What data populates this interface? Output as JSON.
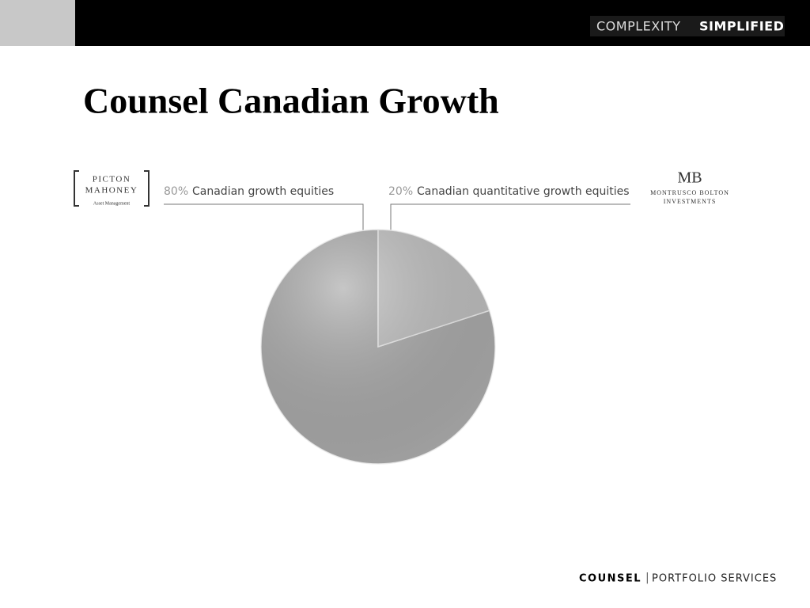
{
  "header": {
    "tagline_light": "COMPLEXITY",
    "tagline_bold": "SIMPLIFIED"
  },
  "logos": {
    "left": {
      "line1": "PICTON",
      "line2": "MAHONEY",
      "line3": "Asset Management"
    },
    "right": {
      "mark": "MB",
      "line1": "MONTRUSCO BOLTON",
      "line2": "INVESTMENTS"
    }
  },
  "footer": {
    "brand": "COUNSEL",
    "separator": "|",
    "division": "PORTFOLIO SERVICES"
  },
  "chart_data": {
    "type": "pie",
    "title": "Counsel Canadian Growth",
    "categories": [
      "Canadian growth equities",
      "Canadian quantitative growth equities"
    ],
    "values": [
      80,
      20
    ],
    "value_labels": [
      "80%",
      "20%"
    ],
    "colors": [
      "#a8a8a8",
      "#bdbdbd"
    ]
  }
}
